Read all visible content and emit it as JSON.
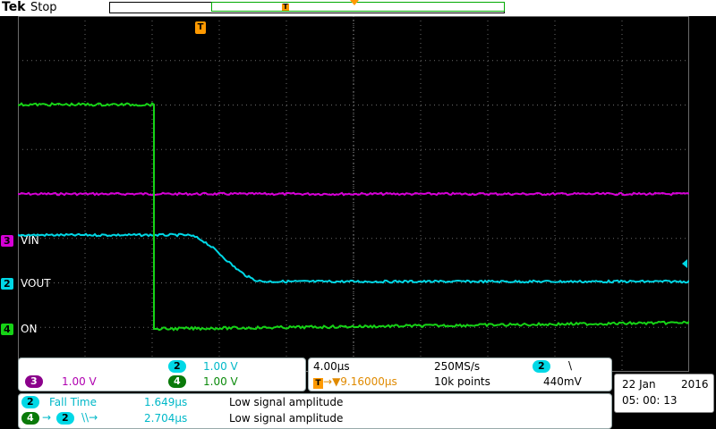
{
  "header": {
    "brand": "Tek",
    "status": "Stop",
    "record_trigger_label": "T",
    "trigger_flag_label": "T"
  },
  "channels": [
    {
      "id": "3",
      "label": "VIN",
      "color": "#d600d6"
    },
    {
      "id": "2",
      "label": "VOUT",
      "color": "#00d8e6"
    },
    {
      "id": "4",
      "label": "ON",
      "color": "#16d316"
    }
  ],
  "vertical": {
    "ch3": {
      "id": "3",
      "scale": "1.00 V"
    },
    "ch2": {
      "id": "2",
      "scale": "1.00 V"
    },
    "ch4": {
      "id": "4",
      "scale": "1.00 V"
    }
  },
  "horizontal": {
    "timebase": "4.00µs",
    "sample_rate": "250MS/s",
    "trigger_delay": "▼9.16000µs",
    "record_length": "10k points",
    "trigger_source": "2",
    "trigger_slope": "\\",
    "trigger_level": "440mV"
  },
  "measurements": [
    {
      "source": "2",
      "name": "Fall Time",
      "value": "1.649µs",
      "note": "Low signal amplitude"
    },
    {
      "source": "4",
      "target": "2",
      "name": "\\\\→",
      "value": "2.704µs",
      "note": "Low signal amplitude"
    }
  ],
  "datetime": {
    "date": "22 Jan",
    "year": "2016",
    "time": "05: 00: 13"
  },
  "colors": {
    "orange": "#ff9900",
    "grid": "#6b6b6b",
    "background": "#000000"
  }
}
